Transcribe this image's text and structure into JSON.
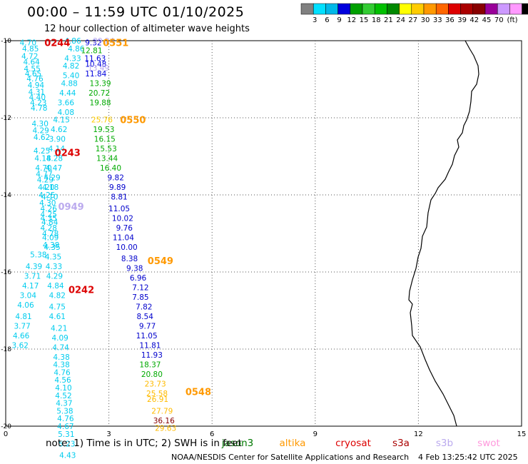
{
  "header": {
    "title": "00:00 – 11:59 UTC 01/10/2025",
    "subtitle": "12 hour collection of altimeter wave heights"
  },
  "footer": {
    "note": "note: 1) Time is in UTC; 2) SWH is in feet",
    "credit": "NOAA/NESDIS Center for Satellite Applications and Research",
    "timestamp": "4 Feb 13:25:42 UTC 2025"
  },
  "color_scale": {
    "labels": [
      "3",
      "6",
      "9",
      "12",
      "15",
      "18",
      "21",
      "24",
      "27",
      "30",
      "33",
      "36",
      "39",
      "42",
      "45",
      "70"
    ],
    "unit": "(ft)",
    "colors": [
      "#808080",
      "#00e0ff",
      "#00b8e8",
      "#0000dd",
      "#00a000",
      "#33cc33",
      "#00c000",
      "#008800",
      "#ffff00",
      "#ffcc00",
      "#ff9900",
      "#ff6600",
      "#dd0000",
      "#aa0000",
      "#880000",
      "#990099",
      "#cc99ff",
      "#ff99ff",
      "#000000"
    ]
  },
  "satellites": [
    {
      "name": "jason3",
      "color": "#007700"
    },
    {
      "name": "altika",
      "color": "#ff9900"
    },
    {
      "name": "cryosat",
      "color": "#dd0000"
    },
    {
      "name": "s3a",
      "color": "#aa0000"
    },
    {
      "name": "s3b",
      "color": "#bbaaee"
    },
    {
      "name": "swot",
      "color": "#ff99dd"
    }
  ],
  "chart_data": {
    "type": "scatter",
    "xlim": [
      0,
      15
    ],
    "ylim": [
      -20,
      -10
    ],
    "xticks": [
      0,
      3,
      6,
      9,
      12,
      15
    ],
    "yticks": [
      -10,
      -12,
      -14,
      -16,
      -18,
      -20
    ],
    "xtick_labels": [
      "0",
      "3",
      "6",
      "9",
      "12",
      "15"
    ],
    "ytick_labels": [
      "-10",
      "-12",
      "-14",
      "-16",
      "-18",
      "-20"
    ],
    "grid": true,
    "pass_labels": [
      {
        "text": "0244",
        "x": 1.5,
        "y": -10.05,
        "color": "#dd0000"
      },
      {
        "text": "0551",
        "x": 3.2,
        "y": -10.05,
        "color": "#ff9900"
      },
      {
        "text": "0550",
        "x": 3.7,
        "y": -12.05,
        "color": "#ff9900"
      },
      {
        "text": "0243",
        "x": 1.8,
        "y": -12.9,
        "color": "#dd0000"
      },
      {
        "text": "0949",
        "x": 1.9,
        "y": -14.3,
        "color": "#bbaaee"
      },
      {
        "text": "0549",
        "x": 4.5,
        "y": -15.7,
        "color": "#ff9900"
      },
      {
        "text": "0242",
        "x": 2.2,
        "y": -16.45,
        "color": "#dd0000"
      },
      {
        "text": "0548",
        "x": 5.6,
        "y": -19.1,
        "color": "#ff9900"
      }
    ],
    "series": [
      {
        "name": "cryosat 0244",
        "color": "#00ccee",
        "points": [
          [
            0.65,
            -10.05,
            "4.70"
          ],
          [
            0.72,
            -10.2,
            "4.85"
          ],
          [
            0.7,
            -10.4,
            "4.72"
          ],
          [
            0.75,
            -10.55,
            "4.64"
          ],
          [
            0.77,
            -10.72,
            "4.55"
          ],
          [
            0.8,
            -10.85,
            "4.65"
          ],
          [
            0.85,
            -10.98,
            "4.76"
          ],
          [
            0.88,
            -11.15,
            "4.94"
          ],
          [
            0.9,
            -11.32,
            "4.31"
          ],
          [
            0.92,
            -11.46,
            "4.40"
          ],
          [
            0.95,
            -11.6,
            "4.23"
          ],
          [
            0.97,
            -11.74,
            "4.78"
          ],
          [
            1.0,
            -12.15,
            "4.30"
          ],
          [
            1.02,
            -12.32,
            "4.29"
          ],
          [
            1.05,
            -12.5,
            "4.62"
          ],
          [
            1.05,
            -12.85,
            "4.25"
          ],
          [
            1.08,
            -13.05,
            "4.18"
          ],
          [
            1.1,
            -13.3,
            "4.70"
          ],
          [
            1.12,
            -13.45,
            "4.77"
          ],
          [
            1.15,
            -13.6,
            "4.29"
          ],
          [
            1.18,
            -13.8,
            "4.20"
          ],
          [
            1.2,
            -14.0,
            "4.25"
          ],
          [
            1.22,
            -14.2,
            "4.30"
          ],
          [
            1.25,
            -14.5,
            "4.25"
          ],
          [
            1.28,
            -14.7,
            "4.84"
          ],
          [
            1.3,
            -15.0,
            "4.78"
          ],
          [
            1.32,
            -15.3,
            "4.38"
          ],
          [
            0.95,
            -15.55,
            "5.38"
          ],
          [
            0.82,
            -15.85,
            "4.39"
          ],
          [
            0.78,
            -16.1,
            "3.71"
          ],
          [
            0.72,
            -16.35,
            "4.17"
          ],
          [
            0.65,
            -16.6,
            "3.04"
          ],
          [
            0.58,
            -16.85,
            "4.06"
          ],
          [
            0.52,
            -17.15,
            "4.81"
          ],
          [
            0.48,
            -17.4,
            "3.77"
          ],
          [
            0.45,
            -17.65,
            "4.66"
          ],
          [
            0.42,
            -17.9,
            "3.62"
          ]
        ]
      },
      {
        "name": "jason 0551",
        "color": "#00ccee",
        "points": [
          [
            1.95,
            -10.0,
            "4.86"
          ],
          [
            2.05,
            -10.2,
            "4.86"
          ],
          [
            1.95,
            -10.45,
            "4.33"
          ],
          [
            1.9,
            -10.65,
            "4.82"
          ],
          [
            1.9,
            -10.9,
            "5.40"
          ],
          [
            1.85,
            -11.1,
            "4.88"
          ],
          [
            1.8,
            -11.35,
            "4.44"
          ],
          [
            1.75,
            -11.6,
            "3.66"
          ],
          [
            1.75,
            -11.85,
            "4.08"
          ],
          [
            1.62,
            -12.05,
            "4.15"
          ],
          [
            1.55,
            -12.3,
            "4.62"
          ],
          [
            1.5,
            -12.55,
            "3.90"
          ],
          [
            1.48,
            -12.8,
            "4.14"
          ],
          [
            1.42,
            -13.05,
            "4.28"
          ],
          [
            1.4,
            -13.3,
            "4.47"
          ],
          [
            1.35,
            -13.55,
            "4.29"
          ],
          [
            1.3,
            -13.8,
            "4.18"
          ],
          [
            1.28,
            -14.05,
            "4.10"
          ],
          [
            1.25,
            -14.35,
            "4.26"
          ],
          [
            1.25,
            -14.6,
            "4.35"
          ],
          [
            1.25,
            -14.85,
            "4.28"
          ],
          [
            1.3,
            -15.1,
            "4.09"
          ],
          [
            1.35,
            -15.35,
            "4.35"
          ],
          [
            1.38,
            -15.6,
            "4.35"
          ],
          [
            1.4,
            -15.85,
            "4.33"
          ],
          [
            1.42,
            -16.1,
            "4.29"
          ],
          [
            1.45,
            -16.35,
            "4.84"
          ],
          [
            1.5,
            -16.6,
            "4.82"
          ],
          [
            1.5,
            -16.9,
            "4.75"
          ],
          [
            1.5,
            -17.15,
            "4.61"
          ],
          [
            1.55,
            -17.45,
            "4.21"
          ],
          [
            1.58,
            -17.7,
            "4.09"
          ],
          [
            1.6,
            -17.95,
            "4.74"
          ],
          [
            1.62,
            -18.2,
            "4.38"
          ],
          [
            1.62,
            -18.4,
            "4.38"
          ],
          [
            1.64,
            -18.6,
            "4.76"
          ],
          [
            1.66,
            -18.8,
            "4.56"
          ],
          [
            1.68,
            -19.0,
            "4.10"
          ],
          [
            1.68,
            -19.2,
            "4.52"
          ],
          [
            1.7,
            -19.4,
            "4.37"
          ],
          [
            1.72,
            -19.6,
            "5.38"
          ],
          [
            1.74,
            -19.8,
            "4.76"
          ],
          [
            1.74,
            -20.0,
            "4.67"
          ],
          [
            1.76,
            -20.2,
            "5.31"
          ],
          [
            1.78,
            -20.45,
            "5.23"
          ],
          [
            1.8,
            -20.75,
            "4.43"
          ]
        ]
      },
      {
        "name": "altika 0550",
        "color": "#0000dd",
        "points": [
          [
            2.55,
            -10.05,
            "9.32"
          ],
          [
            2.6,
            -10.45,
            "11.63"
          ],
          [
            2.62,
            -10.6,
            "10.48"
          ],
          [
            2.62,
            -10.85,
            "11.84"
          ]
        ]
      },
      {
        "name": "altika greens",
        "color": "#00aa00",
        "points": [
          [
            2.5,
            -10.25,
            "12.81"
          ],
          [
            2.75,
            -11.1,
            "13.39"
          ],
          [
            2.72,
            -11.35,
            "20.72"
          ],
          [
            2.75,
            -11.6,
            "19.88"
          ],
          [
            2.85,
            -12.3,
            "19.53"
          ],
          [
            2.88,
            -12.55,
            "16.15"
          ],
          [
            2.92,
            -12.8,
            "15.53"
          ],
          [
            2.95,
            -13.05,
            "13.44"
          ],
          [
            3.05,
            -13.3,
            "16.40"
          ]
        ]
      },
      {
        "name": "altika yellow",
        "color": "#ffcc00",
        "points": [
          [
            2.8,
            -12.05,
            "25.76"
          ]
        ]
      },
      {
        "name": "altika blues",
        "color": "#0000cc",
        "points": [
          [
            3.2,
            -13.55,
            "9.82"
          ],
          [
            3.25,
            -13.8,
            "9.89"
          ],
          [
            3.3,
            -14.05,
            "8.81"
          ],
          [
            3.3,
            -14.35,
            "11.05"
          ],
          [
            3.4,
            -14.6,
            "10.02"
          ],
          [
            3.45,
            -14.85,
            "9.76"
          ],
          [
            3.42,
            -15.1,
            "11.04"
          ],
          [
            3.52,
            -15.35,
            "10.00"
          ],
          [
            3.6,
            -15.65,
            "8.38"
          ],
          [
            3.75,
            -15.9,
            "9.38"
          ],
          [
            3.85,
            -16.15,
            "6.96"
          ],
          [
            3.92,
            -16.4,
            "7.12"
          ],
          [
            3.92,
            -16.65,
            "7.85"
          ],
          [
            4.02,
            -16.9,
            "7.82"
          ],
          [
            4.05,
            -17.15,
            "8.54"
          ],
          [
            4.12,
            -17.4,
            "9.77"
          ],
          [
            4.1,
            -17.65,
            "11.05"
          ],
          [
            4.2,
            -17.9,
            "11.81"
          ],
          [
            4.25,
            -18.15,
            "11.93"
          ]
        ]
      },
      {
        "name": "altika lower",
        "color": "#00aa00",
        "points": [
          [
            4.2,
            -18.4,
            "18.37"
          ],
          [
            4.25,
            -18.65,
            "20.80"
          ]
        ]
      },
      {
        "name": "altika orange",
        "color": "#ffbb00",
        "points": [
          [
            4.35,
            -18.9,
            "23.73"
          ],
          [
            4.4,
            -19.15,
            "25.58"
          ],
          [
            4.42,
            -19.3,
            "26.91"
          ],
          [
            4.55,
            -19.6,
            "27.79"
          ],
          [
            4.65,
            -20.05,
            "29.63"
          ]
        ]
      },
      {
        "name": "altika dark",
        "color": "#880000",
        "points": [
          [
            4.6,
            -19.85,
            "36.16"
          ]
        ]
      },
      {
        "name": "swot",
        "color": "#bbaaee",
        "points": [
          [
            2.85,
            -10.0,
            "29.24"
          ],
          [
            2.7,
            -10.7,
            "13.49"
          ]
        ]
      }
    ]
  }
}
